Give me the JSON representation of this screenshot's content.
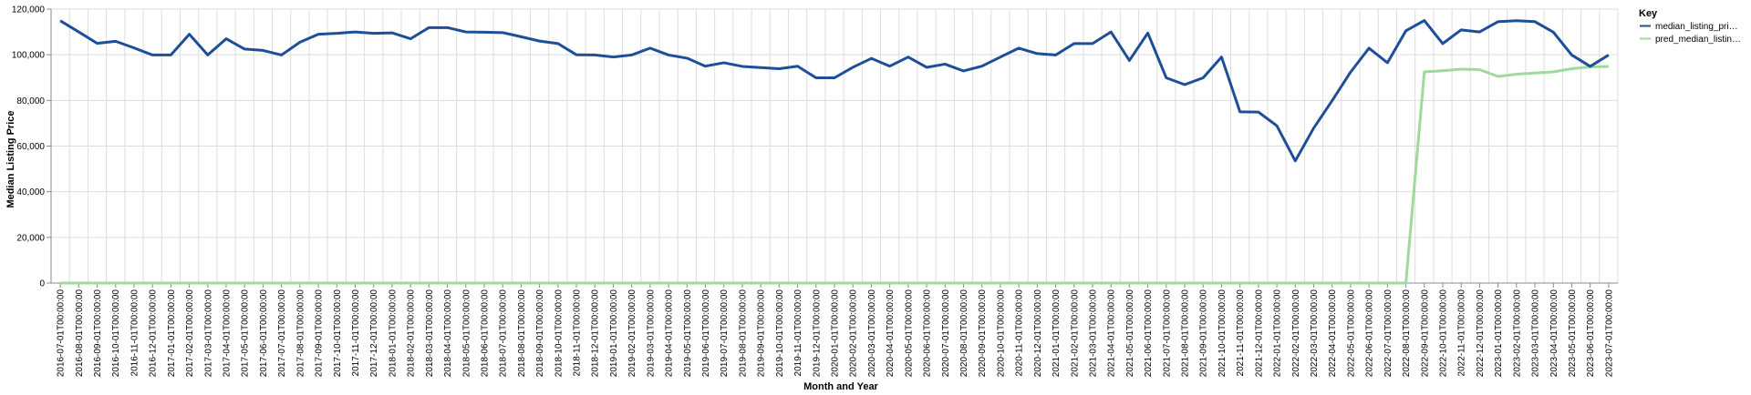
{
  "chart_data": {
    "type": "line",
    "xlabel": "Month and Year",
    "ylabel": "Median Listing Price",
    "ylim": [
      0,
      120000
    ],
    "y_ticks": [
      "0",
      "20,000",
      "40,000",
      "60,000",
      "80,000",
      "100,000",
      "120,000"
    ],
    "grid": true,
    "legend_title": "Key",
    "legend_position": "top-right",
    "categories": [
      "2016-07-01T00:00:00",
      "2016-08-01T00:00:00",
      "2016-09-01T00:00:00",
      "2016-10-01T00:00:00",
      "2016-11-01T00:00:00",
      "2016-12-01T00:00:00",
      "2017-01-01T00:00:00",
      "2017-02-01T00:00:00",
      "2017-03-01T00:00:00",
      "2017-04-01T00:00:00",
      "2017-05-01T00:00:00",
      "2017-06-01T00:00:00",
      "2017-07-01T00:00:00",
      "2017-08-01T00:00:00",
      "2017-09-01T00:00:00",
      "2017-10-01T00:00:00",
      "2017-11-01T00:00:00",
      "2017-12-01T00:00:00",
      "2018-01-01T00:00:00",
      "2018-02-01T00:00:00",
      "2018-03-01T00:00:00",
      "2018-04-01T00:00:00",
      "2018-05-01T00:00:00",
      "2018-06-01T00:00:00",
      "2018-07-01T00:00:00",
      "2018-08-01T00:00:00",
      "2018-09-01T00:00:00",
      "2018-10-01T00:00:00",
      "2018-11-01T00:00:00",
      "2018-12-01T00:00:00",
      "2019-01-01T00:00:00",
      "2019-02-01T00:00:00",
      "2019-03-01T00:00:00",
      "2019-04-01T00:00:00",
      "2019-05-01T00:00:00",
      "2019-06-01T00:00:00",
      "2019-07-01T00:00:00",
      "2019-08-01T00:00:00",
      "2019-09-01T00:00:00",
      "2019-10-01T00:00:00",
      "2019-11-01T00:00:00",
      "2019-12-01T00:00:00",
      "2020-01-01T00:00:00",
      "2020-02-01T00:00:00",
      "2020-03-01T00:00:00",
      "2020-04-01T00:00:00",
      "2020-05-01T00:00:00",
      "2020-06-01T00:00:00",
      "2020-07-01T00:00:00",
      "2020-08-01T00:00:00",
      "2020-09-01T00:00:00",
      "2020-10-01T00:00:00",
      "2020-11-01T00:00:00",
      "2020-12-01T00:00:00",
      "2021-01-01T00:00:00",
      "2021-02-01T00:00:00",
      "2021-03-01T00:00:00",
      "2021-04-01T00:00:00",
      "2021-05-01T00:00:00",
      "2021-06-01T00:00:00",
      "2021-07-01T00:00:00",
      "2021-08-01T00:00:00",
      "2021-09-01T00:00:00",
      "2021-10-01T00:00:00",
      "2021-11-01T00:00:00",
      "2021-12-01T00:00:00",
      "2022-01-01T00:00:00",
      "2022-02-01T00:00:00",
      "2022-03-01T00:00:00",
      "2022-04-01T00:00:00",
      "2022-05-01T00:00:00",
      "2022-06-01T00:00:00",
      "2022-07-01T00:00:00",
      "2022-08-01T00:00:00",
      "2022-09-01T00:00:00",
      "2022-10-01T00:00:00",
      "2022-11-01T00:00:00",
      "2022-12-01T00:00:00",
      "2023-01-01T00:00:00",
      "2023-02-01T00:00:00",
      "2023-03-01T00:00:00",
      "2023-04-01T00:00:00",
      "2023-05-01T00:00:00",
      "2023-06-01T00:00:00",
      "2023-07-01T00:00:00"
    ],
    "series": [
      {
        "name": "median_listing_pri…",
        "color": "#1f4e99",
        "values": [
          114900,
          110000,
          105000,
          105900,
          103000,
          99900,
          99900,
          109000,
          99900,
          107000,
          102500,
          101900,
          99900,
          105500,
          109000,
          109400,
          110000,
          109400,
          109600,
          107000,
          111900,
          111900,
          110000,
          109900,
          109700,
          107900,
          106000,
          104900,
          100000,
          99900,
          99000,
          99900,
          102900,
          99900,
          98500,
          95000,
          96500,
          94900,
          94400,
          93900,
          95000,
          89900,
          89900,
          94500,
          98400,
          95000,
          99000,
          94500,
          95900,
          92900,
          95000,
          99000,
          102900,
          100500,
          99900,
          104900,
          104900,
          110000,
          97500,
          109500,
          89900,
          86900,
          89900,
          99000,
          75000,
          74900,
          68900,
          53500,
          67900,
          79900,
          92400,
          102900,
          96500,
          110500,
          115000,
          104900,
          110900,
          110000,
          114500,
          114900,
          114500,
          109900,
          99900,
          94900,
          99900
        ]
      },
      {
        "name": "pred_median_listin…",
        "color": "#9fd99b",
        "values": [
          0,
          0,
          0,
          0,
          0,
          0,
          0,
          0,
          0,
          0,
          0,
          0,
          0,
          0,
          0,
          0,
          0,
          0,
          0,
          0,
          0,
          0,
          0,
          0,
          0,
          0,
          0,
          0,
          0,
          0,
          0,
          0,
          0,
          0,
          0,
          0,
          0,
          0,
          0,
          0,
          0,
          0,
          0,
          0,
          0,
          0,
          0,
          0,
          0,
          0,
          0,
          0,
          0,
          0,
          0,
          0,
          0,
          0,
          0,
          0,
          0,
          0,
          0,
          0,
          0,
          0,
          0,
          0,
          0,
          0,
          0,
          0,
          0,
          0,
          92500,
          93000,
          93700,
          93500,
          90500,
          91500,
          92000,
          92500,
          93900,
          94700,
          94900
        ]
      }
    ]
  }
}
